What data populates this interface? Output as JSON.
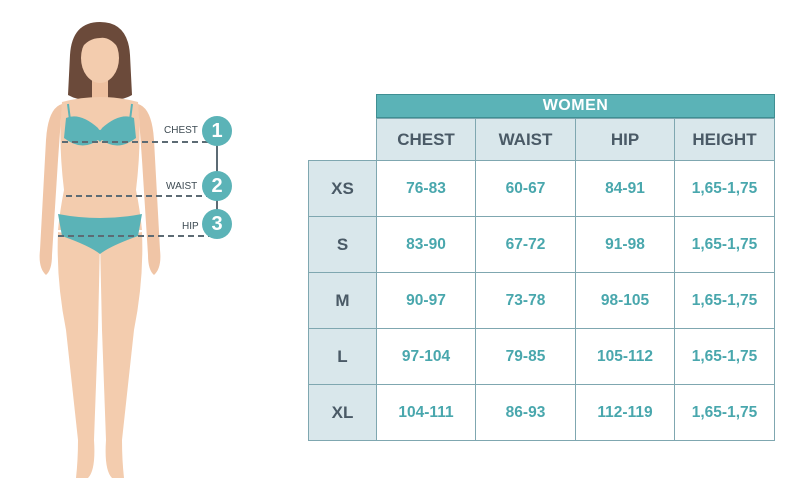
{
  "measure_labels": {
    "chest": "CHEST",
    "waist": "WAIST",
    "hip": "HIP"
  },
  "measure_numbers": {
    "chest": "1",
    "waist": "2",
    "hip": "3"
  },
  "table": {
    "title": "WOMEN",
    "columns": [
      "CHEST",
      "WAIST",
      "HIP",
      "HEIGHT"
    ],
    "rows": [
      {
        "size": "XS",
        "values": [
          "76-83",
          "60-67",
          "84-91",
          "1,65-1,75"
        ]
      },
      {
        "size": "S",
        "values": [
          "83-90",
          "67-72",
          "91-98",
          "1,65-1,75"
        ]
      },
      {
        "size": "M",
        "values": [
          "90-97",
          "73-78",
          "98-105",
          "1,65-1,75"
        ]
      },
      {
        "size": "L",
        "values": [
          "97-104",
          "79-85",
          "105-112",
          "1,65-1,75"
        ]
      },
      {
        "size": "XL",
        "values": [
          "104-111",
          "86-93",
          "112-119",
          "1,65-1,75"
        ]
      }
    ]
  },
  "colors": {
    "teal": "#5bb3b7",
    "header_bg": "#d9e7eb",
    "value_text": "#49a7ad",
    "skin": "#f3ccae",
    "hair": "#6b4a3a"
  }
}
